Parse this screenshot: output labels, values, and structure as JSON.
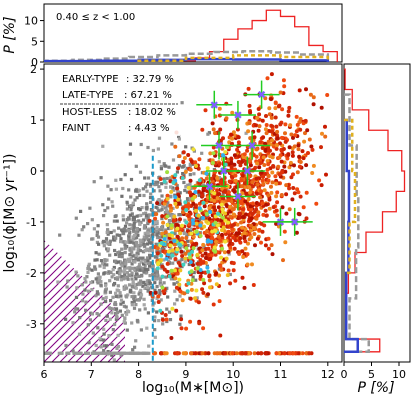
{
  "chart_data": {
    "type": "scatter",
    "title": "",
    "redshift_label": "0.40 ≤ z < 1.00",
    "xlabel": "log₁₀(M∗[M⊙])",
    "ylabel": "log₁₀(ϕ[M⊙ yr⁻¹])",
    "top_ylabel": "P [%]",
    "right_xlabel": "P [%]",
    "xlim": [
      6,
      12.3
    ],
    "ylim": [
      -3.75,
      2.1
    ],
    "x_ticks": [
      "6",
      "7",
      "8",
      "9",
      "10",
      "11",
      "12"
    ],
    "y_ticks": [
      "-3",
      "-2",
      "-1",
      "0",
      "1",
      "2"
    ],
    "top_y_ticks": [
      "0",
      "5",
      "10"
    ],
    "top_ylim": [
      0,
      14
    ],
    "right_x_ticks": [
      "0",
      "5",
      "10"
    ],
    "right_xlim": [
      0,
      12
    ],
    "completeness_mass": 8.3,
    "legend": [
      {
        "label": "EARLY-TYPE",
        "value": ": 32.79  %"
      },
      {
        "label": "LATE-TYPE",
        "value": ":  67.21 %"
      },
      {
        "label": "HOST-LESS",
        "value": ":  18.02 %"
      },
      {
        "label": "FAINT",
        "value": ":   4.43  %"
      }
    ],
    "clouds": [
      {
        "name": "grey",
        "color": "#8c8c8c",
        "cx": 8.1,
        "cy": -1.55,
        "sx": 0.75,
        "sy": 0.75,
        "n": 1100,
        "xmin": 6.2,
        "xmax": 10.6
      },
      {
        "name": "red",
        "color": "#dd2a0c",
        "cx": 10.0,
        "cy": -0.55,
        "sx": 0.95,
        "sy": 0.95,
        "n": 1300,
        "xmin": 8.2,
        "xmax": 12.0
      }
    ],
    "lower_limit_row": {
      "y": -3.58,
      "grey_x": [
        6.0,
        8.3
      ],
      "red_x": [
        8.3,
        11.7
      ]
    },
    "medians": [
      {
        "x": 9.6,
        "y": 1.3
      },
      {
        "x": 10.1,
        "y": 1.1
      },
      {
        "x": 10.6,
        "y": 1.5
      },
      {
        "x": 10.4,
        "y": 0.5
      },
      {
        "x": 9.8,
        "y": 0.0
      },
      {
        "x": 10.3,
        "y": 0.0
      },
      {
        "x": 10.1,
        "y": -0.5
      },
      {
        "x": 9.5,
        "y": -0.3
      },
      {
        "x": 11.0,
        "y": -1.0
      },
      {
        "x": 11.3,
        "y": -1.0
      },
      {
        "x": 9.7,
        "y": 0.5
      }
    ],
    "top_histograms": [
      {
        "name": "red",
        "color": "#ee2222",
        "bins": [
          8.9,
          9.2,
          9.5,
          9.8,
          10.1,
          10.4,
          10.7,
          11.0,
          11.3,
          11.6,
          11.9,
          12.2
        ],
        "values": [
          0.3,
          1.0,
          2.5,
          5.5,
          8.0,
          10.0,
          12.5,
          11.0,
          8.5,
          4.0,
          2.5
        ]
      },
      {
        "name": "grey",
        "color": "#999999",
        "bins": [
          6.0,
          6.6,
          7.2,
          7.8,
          8.4,
          9.0,
          9.6,
          10.2,
          10.8,
          11.4,
          12.0
        ],
        "values": [
          0.3,
          0.5,
          0.8,
          1.2,
          1.6,
          2.0,
          2.4,
          2.6,
          2.3,
          1.8
        ]
      },
      {
        "name": "blue",
        "color": "#3344cc",
        "bins": [
          6.0,
          7.0,
          8.0,
          9.0,
          10.0,
          11.0,
          12.0
        ],
        "values": [
          0.2,
          0.3,
          0.5,
          0.7,
          0.6,
          0.4
        ]
      },
      {
        "name": "yellow",
        "color": "#e0b020",
        "bins": [
          8.0,
          9.0,
          10.0,
          11.0,
          12.0
        ],
        "values": [
          0.3,
          1.0,
          1.6,
          1.2
        ]
      }
    ],
    "right_histograms": [
      {
        "name": "red",
        "color": "#ee2222",
        "edges": [
          2.0,
          1.6,
          1.2,
          0.8,
          0.4,
          0.0,
          -0.4,
          -0.8,
          -1.2,
          -1.6,
          -2.0,
          -2.4,
          -3.3,
          -3.55
        ],
        "values": [
          0.2,
          1.5,
          4.5,
          8.0,
          10.5,
          11.0,
          9.5,
          7.0,
          4.0,
          2.0,
          0.8,
          0.3,
          6.5
        ]
      },
      {
        "name": "grey",
        "color": "#999999",
        "edges": [
          1.5,
          0.5,
          -0.5,
          -1.5,
          -2.5,
          -3.3,
          -3.55
        ],
        "values": [
          1.0,
          2.3,
          2.6,
          2.2,
          1.0,
          4.5
        ]
      },
      {
        "name": "blue",
        "color": "#3344cc",
        "edges": [
          1.0,
          0.0,
          -1.0,
          -2.0,
          -3.3,
          -3.55
        ],
        "values": [
          0.5,
          0.9,
          0.8,
          0.4,
          2.5
        ]
      },
      {
        "name": "yellow",
        "color": "#e0b020",
        "edges": [
          1.0,
          0.0,
          -1.0,
          -2.0
        ],
        "values": [
          1.5,
          2.0,
          1.0
        ]
      }
    ]
  }
}
